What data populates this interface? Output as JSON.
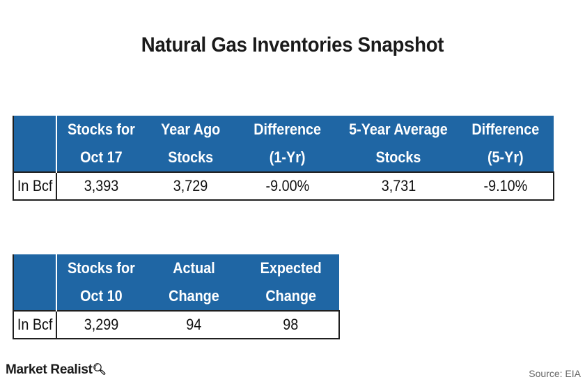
{
  "title": "Natural Gas Inventories Snapshot",
  "chart_data": [
    {
      "type": "table",
      "columns": [
        "",
        "Stocks for Oct 17",
        "Year Ago Stocks",
        "Difference (1-Yr)",
        "5-Year Average Stocks",
        "Difference (5-Yr)"
      ],
      "header_lines": [
        [
          "",
          ""
        ],
        [
          "Stocks for",
          "Oct 17"
        ],
        [
          "Year Ago",
          "Stocks"
        ],
        [
          "Difference",
          "(1-Yr)"
        ],
        [
          "5-Year Average",
          "Stocks"
        ],
        [
          "Difference",
          "(5-Yr)"
        ]
      ],
      "rows": [
        [
          "In Bcf",
          "3,393",
          "3,729",
          "-9.00%",
          "3,731",
          "-9.10%"
        ]
      ]
    },
    {
      "type": "table",
      "columns": [
        "",
        "Stocks for Oct 10",
        "Actual Change",
        "Expected Change"
      ],
      "header_lines": [
        [
          "",
          ""
        ],
        [
          "Stocks for",
          "Oct 10"
        ],
        [
          "Actual",
          "Change"
        ],
        [
          "Expected",
          "Change"
        ]
      ],
      "rows": [
        [
          "In Bcf",
          "3,299",
          "94",
          "98"
        ]
      ]
    }
  ],
  "footer": {
    "logo": "Market Realist",
    "logo_icon": "magnifier-icon",
    "source": "Source:  EIA"
  },
  "colors": {
    "header_bg": "#1f66a4",
    "header_text": "#ffffff"
  }
}
